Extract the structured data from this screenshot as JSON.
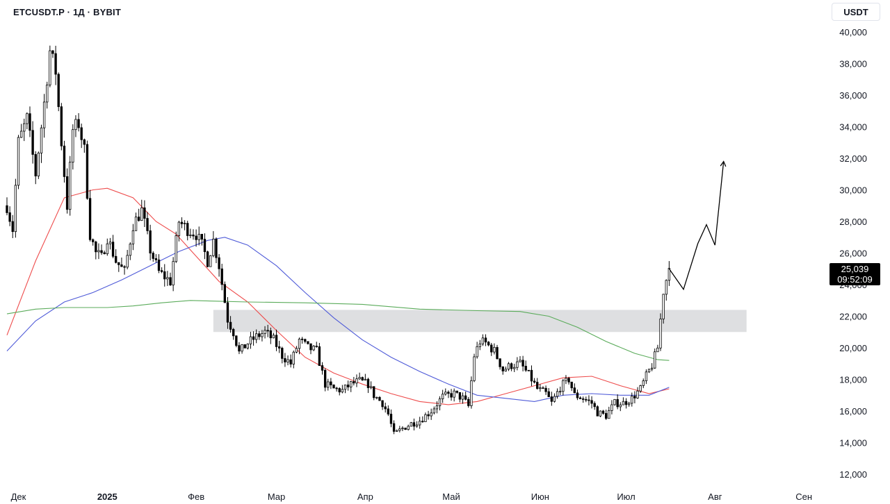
{
  "header": {
    "symbol": "ETCUSDT.P · 1Д · BYBIT",
    "currency": "USDT"
  },
  "price_label": {
    "price": "25,039",
    "countdown": "09:52:09"
  },
  "colors": {
    "up": "#ffffff",
    "down": "#000000",
    "outline": "#000000",
    "ma_red": "#ee4b4b",
    "ma_blue": "#4e5ad8",
    "ma_green": "#5aab5a",
    "zone": "#dedfe1",
    "forecast": "#000000"
  },
  "chart_data": {
    "type": "candlestick",
    "scale": "linear",
    "y_axis_side": "right",
    "ylim": [
      11500,
      40800
    ],
    "yticks": [
      "12,000",
      "14,000",
      "16,000",
      "18,000",
      "20,000",
      "22,000",
      "24,000",
      "26,000",
      "28,000",
      "30,000",
      "32,000",
      "34,000",
      "36,000",
      "38,000",
      "40,000"
    ],
    "x_labels": [
      {
        "label": "Дек",
        "day": 0
      },
      {
        "label": "2025",
        "day": 31,
        "bold": true
      },
      {
        "label": "Фев",
        "day": 62
      },
      {
        "label": "Мар",
        "day": 90
      },
      {
        "label": "Апр",
        "day": 121
      },
      {
        "label": "Май",
        "day": 151
      },
      {
        "label": "Июн",
        "day": 182
      },
      {
        "label": "Июл",
        "day": 212
      },
      {
        "label": "Авг",
        "day": 243
      },
      {
        "label": "Сен",
        "day": 274
      }
    ],
    "xlim_days": [
      -4,
      281
    ],
    "candles_anchor_path": [
      [
        -4,
        29000
      ],
      [
        -2,
        27500
      ],
      [
        0,
        33000
      ],
      [
        3,
        34500
      ],
      [
        6,
        31000
      ],
      [
        9,
        35500
      ],
      [
        11,
        38800
      ],
      [
        13,
        37500
      ],
      [
        15,
        33000
      ],
      [
        17,
        29000
      ],
      [
        19,
        33800
      ],
      [
        21,
        34200
      ],
      [
        23,
        32500
      ],
      [
        25,
        27200
      ],
      [
        27,
        26000
      ],
      [
        29,
        25700
      ],
      [
        31,
        27000
      ],
      [
        34,
        25500
      ],
      [
        37,
        24800
      ],
      [
        40,
        27800
      ],
      [
        43,
        28700
      ],
      [
        46,
        26200
      ],
      [
        49,
        24800
      ],
      [
        53,
        24200
      ],
      [
        56,
        28000
      ],
      [
        59,
        27500
      ],
      [
        62,
        27200
      ],
      [
        64,
        26500
      ],
      [
        66,
        25500
      ],
      [
        68,
        26800
      ],
      [
        70,
        25200
      ],
      [
        73,
        21800
      ],
      [
        75,
        21000
      ],
      [
        77,
        19700
      ],
      [
        80,
        20300
      ],
      [
        83,
        20700
      ],
      [
        86,
        21000
      ],
      [
        89,
        20500
      ],
      [
        92,
        19500
      ],
      [
        95,
        19000
      ],
      [
        98,
        20500
      ],
      [
        101,
        20000
      ],
      [
        104,
        19800
      ],
      [
        107,
        17700
      ],
      [
        110,
        17400
      ],
      [
        113,
        17300
      ],
      [
        116,
        17700
      ],
      [
        119,
        17900
      ],
      [
        122,
        17700
      ],
      [
        124,
        17000
      ],
      [
        127,
        16500
      ],
      [
        129,
        15800
      ],
      [
        131,
        14500
      ],
      [
        134,
        14900
      ],
      [
        137,
        15200
      ],
      [
        140,
        15400
      ],
      [
        144,
        16000
      ],
      [
        148,
        16900
      ],
      [
        152,
        17100
      ],
      [
        155,
        16800
      ],
      [
        157,
        16300
      ],
      [
        159,
        19500
      ],
      [
        161,
        20400
      ],
      [
        163,
        20300
      ],
      [
        166,
        19800
      ],
      [
        169,
        18600
      ],
      [
        172,
        18900
      ],
      [
        175,
        19000
      ],
      [
        178,
        18300
      ],
      [
        181,
        17400
      ],
      [
        184,
        17100
      ],
      [
        186,
        16500
      ],
      [
        189,
        17500
      ],
      [
        192,
        18000
      ],
      [
        194,
        17000
      ],
      [
        197,
        16800
      ],
      [
        200,
        16500
      ],
      [
        202,
        15900
      ],
      [
        205,
        15700
      ],
      [
        208,
        16500
      ],
      [
        211,
        16500
      ],
      [
        214,
        16800
      ],
      [
        217,
        17400
      ],
      [
        219,
        18200
      ],
      [
        221,
        18900
      ],
      [
        223,
        20000
      ],
      [
        225,
        23600
      ],
      [
        227,
        25039
      ]
    ],
    "moving_averages": [
      {
        "color_key": "ma_red",
        "points": [
          [
            -4,
            20800
          ],
          [
            6,
            25500
          ],
          [
            16,
            29500
          ],
          [
            26,
            30000
          ],
          [
            31,
            30100
          ],
          [
            40,
            29500
          ],
          [
            48,
            28000
          ],
          [
            55,
            27200
          ],
          [
            62,
            25800
          ],
          [
            70,
            24200
          ],
          [
            80,
            22900
          ],
          [
            90,
            21100
          ],
          [
            100,
            19400
          ],
          [
            110,
            18400
          ],
          [
            120,
            17700
          ],
          [
            130,
            17100
          ],
          [
            140,
            16600
          ],
          [
            150,
            16400
          ],
          [
            160,
            16600
          ],
          [
            170,
            17100
          ],
          [
            180,
            17600
          ],
          [
            190,
            18100
          ],
          [
            200,
            18200
          ],
          [
            210,
            17600
          ],
          [
            220,
            17100
          ],
          [
            227,
            17400
          ]
        ]
      },
      {
        "color_key": "ma_blue",
        "points": [
          [
            -4,
            19800
          ],
          [
            6,
            21700
          ],
          [
            16,
            22900
          ],
          [
            26,
            23500
          ],
          [
            36,
            24300
          ],
          [
            46,
            25200
          ],
          [
            56,
            26100
          ],
          [
            66,
            26800
          ],
          [
            72,
            27000
          ],
          [
            80,
            26500
          ],
          [
            90,
            25200
          ],
          [
            100,
            23500
          ],
          [
            110,
            21900
          ],
          [
            120,
            20500
          ],
          [
            130,
            19400
          ],
          [
            140,
            18500
          ],
          [
            150,
            17700
          ],
          [
            160,
            17000
          ],
          [
            170,
            16800
          ],
          [
            180,
            16600
          ],
          [
            190,
            17000
          ],
          [
            200,
            17100
          ],
          [
            210,
            17000
          ],
          [
            220,
            17000
          ],
          [
            227,
            17500
          ]
        ]
      },
      {
        "color_key": "ma_green",
        "points": [
          [
            -4,
            22150
          ],
          [
            6,
            22450
          ],
          [
            16,
            22550
          ],
          [
            31,
            22550
          ],
          [
            40,
            22650
          ],
          [
            50,
            22850
          ],
          [
            60,
            23000
          ],
          [
            70,
            22950
          ],
          [
            80,
            22900
          ],
          [
            100,
            22850
          ],
          [
            120,
            22750
          ],
          [
            140,
            22450
          ],
          [
            160,
            22350
          ],
          [
            175,
            22300
          ],
          [
            185,
            22000
          ],
          [
            195,
            21300
          ],
          [
            205,
            20400
          ],
          [
            215,
            19650
          ],
          [
            223,
            19250
          ],
          [
            227,
            19200
          ]
        ]
      }
    ],
    "resistance_zone": {
      "day_start": 68,
      "day_end": 254,
      "low": 21000,
      "high": 22400
    },
    "forecast_path": [
      [
        227,
        25000
      ],
      [
        232,
        23700
      ],
      [
        237,
        26600
      ],
      [
        240,
        27800
      ],
      [
        243,
        26500
      ],
      [
        246,
        31800
      ]
    ]
  }
}
